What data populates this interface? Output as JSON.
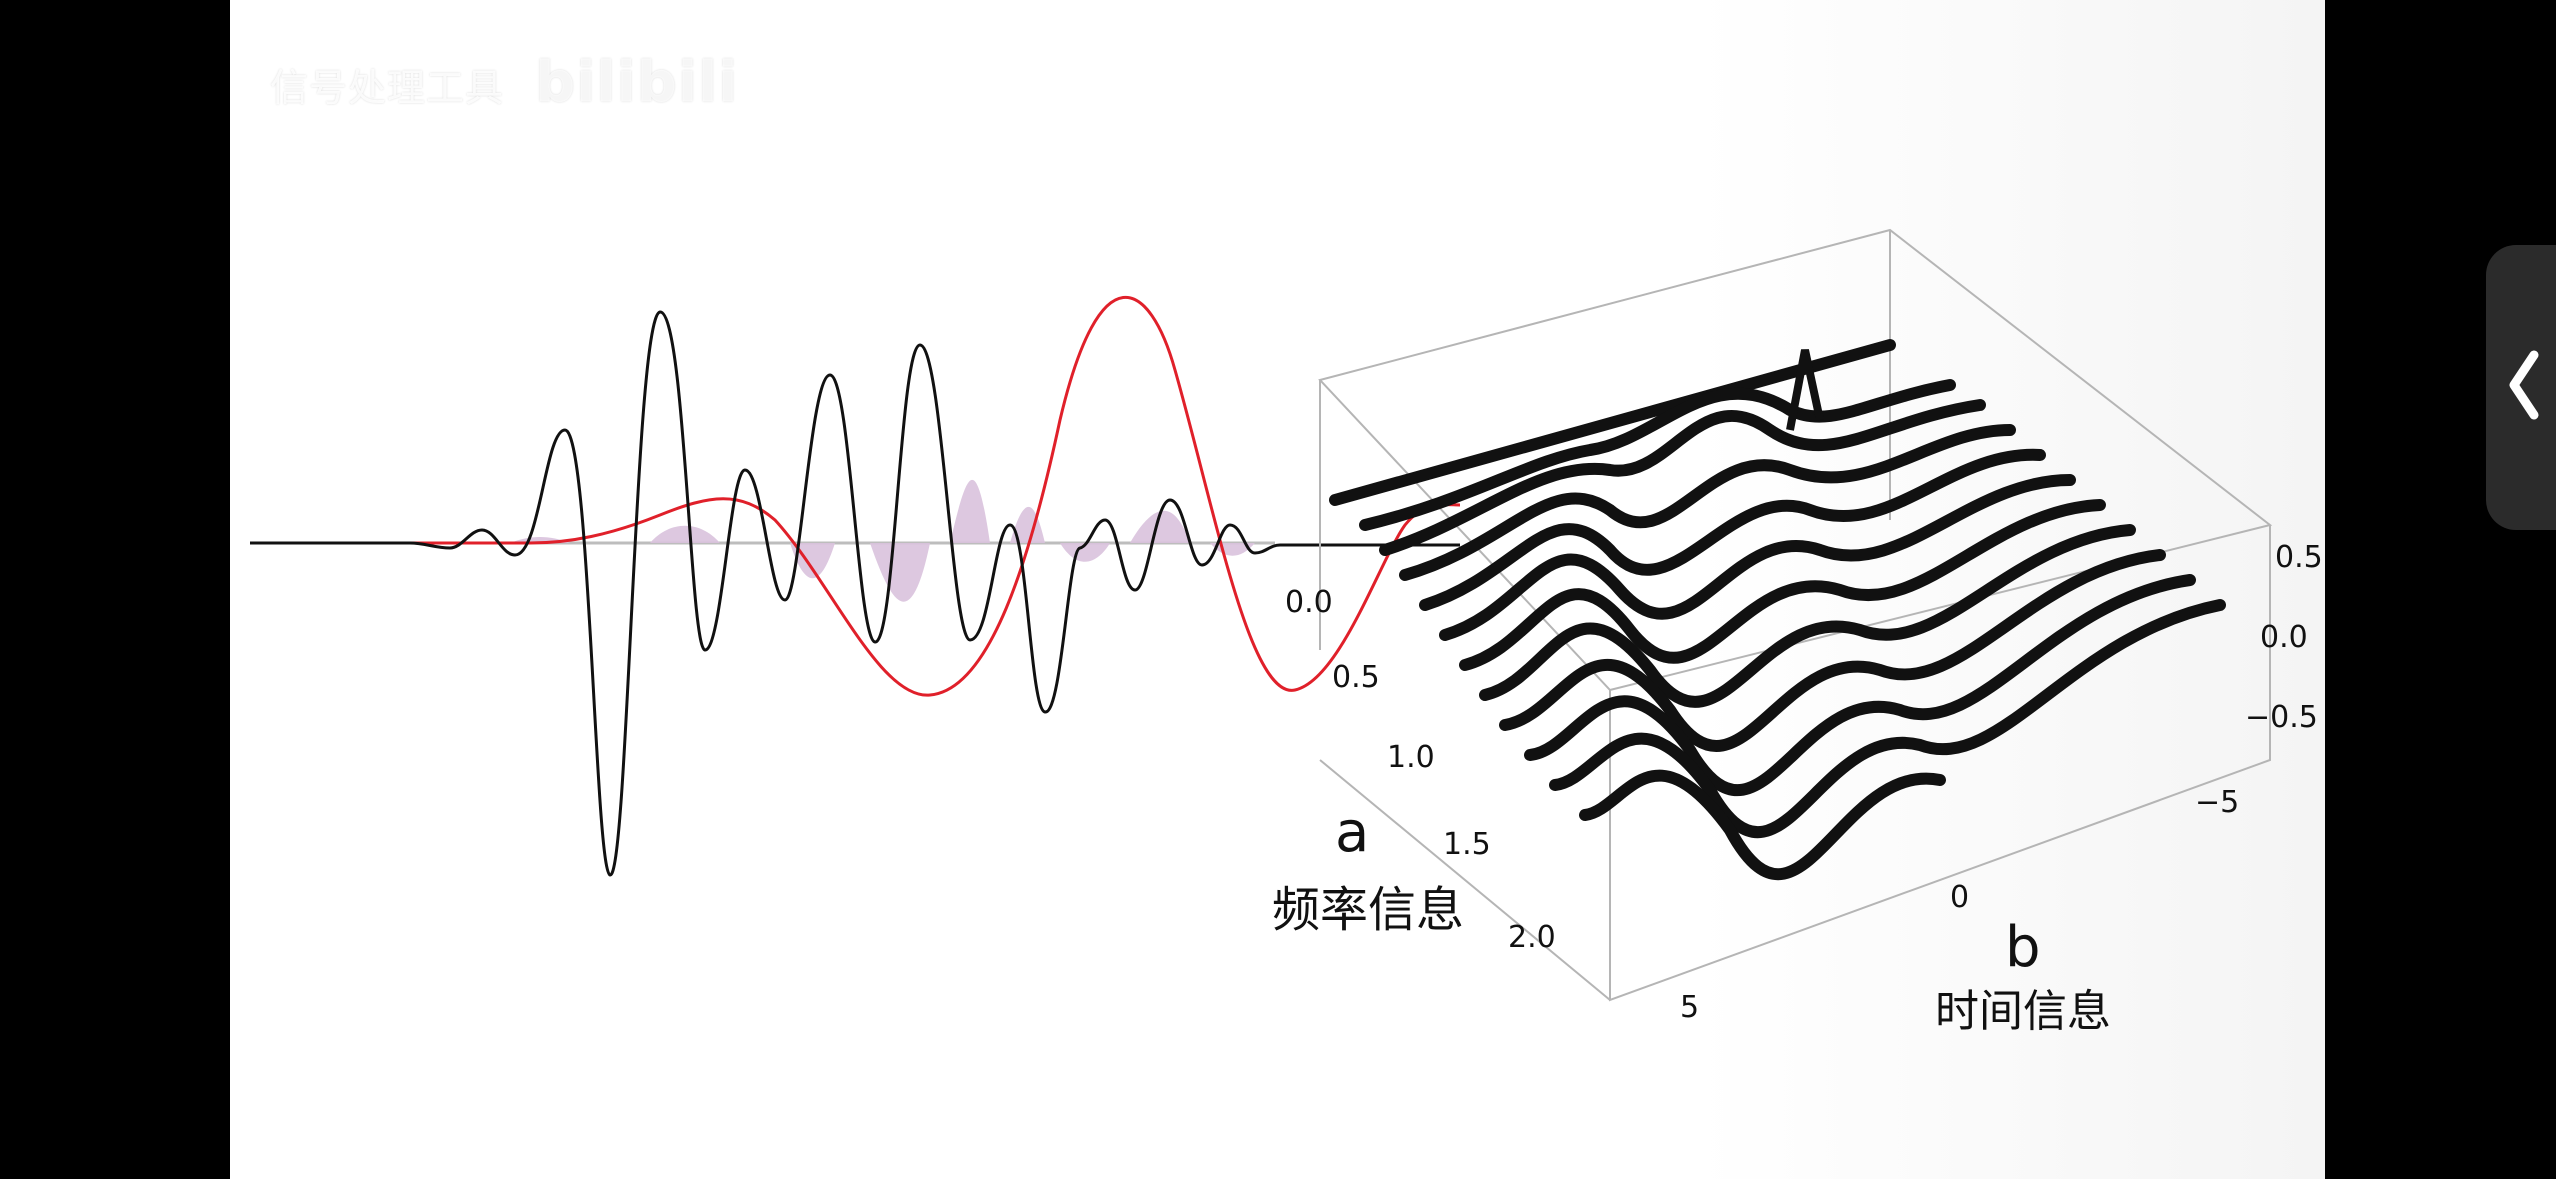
{
  "watermark": {
    "text": "信号处理工具",
    "brand": "bilibili"
  },
  "panel_b": {
    "frequency_ticks": [
      "0.0",
      "0.5",
      "1.0",
      "1.5",
      "2.0"
    ],
    "time_ticks": [
      "5",
      "0",
      "−5"
    ],
    "amplitude_ticks": [
      "0.5",
      "0.0",
      "−0.5"
    ],
    "letter_a": "a",
    "frequency_label": "频率信息",
    "letter_b": "b",
    "time_label": "时间信息"
  },
  "colors": {
    "signal": "#111111",
    "wavelet": "#e0202a",
    "product_fill": "#d9c2dd"
  },
  "handle": {
    "icon": "chevron-left-icon"
  }
}
